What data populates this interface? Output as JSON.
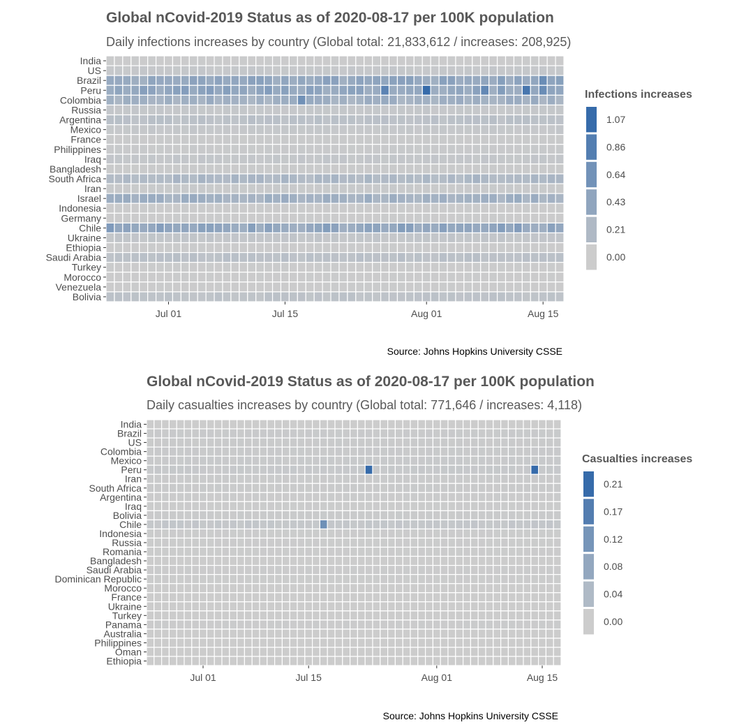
{
  "chart_data": [
    {
      "type": "heatmap",
      "title": "Global nCovid-2019 Status as of 2020-08-17 per 100K population",
      "subtitle": "Daily infections increases by country (Global total: 21,833,612 / increases: 208,925)",
      "caption": "Source: Johns Hopkins University CSSE",
      "legend_title": "Infections increases",
      "legend_values": [
        "1.07",
        "0.86",
        "0.64",
        "0.43",
        "0.21",
        "0.00"
      ],
      "x_ticks": [
        "Jul 01",
        "Jul 15",
        "Aug 01",
        "Aug 15"
      ],
      "x_tick_days": [
        7,
        21,
        38,
        52
      ],
      "date_range": [
        "2020-06-24",
        "2020-08-17"
      ],
      "countries": [
        "India",
        "US",
        "Brazil",
        "Peru",
        "Colombia",
        "Russia",
        "Argentina",
        "Mexico",
        "France",
        "Philippines",
        "Iraq",
        "Bangladesh",
        "South Africa",
        "Iran",
        "Israel",
        "Indonesia",
        "Germany",
        "Chile",
        "Ukraine",
        "Ethiopia",
        "Saudi Arabia",
        "Turkey",
        "Morocco",
        "Venezuela",
        "Bolivia"
      ],
      "country_levels": [
        0.01,
        0.05,
        0.4,
        0.42,
        0.3,
        0.05,
        0.12,
        0.05,
        0.02,
        0.03,
        0.06,
        0.02,
        0.22,
        0.03,
        0.3,
        0.01,
        0.01,
        0.42,
        0.07,
        0.01,
        0.12,
        0.01,
        0.01,
        0.01,
        0.1
      ],
      "highlights": [
        {
          "country": "Peru",
          "date": "2020-07-27",
          "value": 0.8
        },
        {
          "country": "Peru",
          "date": "2020-08-01",
          "value": 1.07
        },
        {
          "country": "Peru",
          "date": "2020-08-08",
          "value": 0.75
        },
        {
          "country": "Peru",
          "date": "2020-08-13",
          "value": 0.95
        },
        {
          "country": "Peru",
          "date": "2020-08-15",
          "value": 0.7
        },
        {
          "country": "Brazil",
          "date": "2020-08-15",
          "value": 0.7
        },
        {
          "country": "Colombia",
          "date": "2020-07-17",
          "value": 0.65
        },
        {
          "country": "Chile",
          "date": "2020-06-24",
          "value": 0.55
        }
      ]
    },
    {
      "type": "heatmap",
      "title": "Global nCovid-2019 Status as of 2020-08-17 per 100K population",
      "subtitle": "Daily casualties increases by country (Global total: 771,646 / increases: 4,118)",
      "caption": "Source: Johns Hopkins University CSSE",
      "legend_title": "Casualties increases",
      "legend_values": [
        "0.21",
        "0.17",
        "0.12",
        "0.08",
        "0.04",
        "0.00"
      ],
      "x_ticks": [
        "Jul 01",
        "Jul 15",
        "Aug 01",
        "Aug 15"
      ],
      "x_tick_days": [
        7,
        21,
        38,
        52
      ],
      "date_range": [
        "2020-06-24",
        "2020-08-17"
      ],
      "countries": [
        "India",
        "Brazil",
        "US",
        "Colombia",
        "Mexico",
        "Peru",
        "Iran",
        "South Africa",
        "Argentina",
        "Iraq",
        "Bolivia",
        "Chile",
        "Indonesia",
        "Russia",
        "Romania",
        "Bangladesh",
        "Saudi Arabia",
        "Dominican Republic",
        "Morocco",
        "France",
        "Ukraine",
        "Turkey",
        "Panama",
        "Australia",
        "Philippines",
        "Oman",
        "Ethiopia"
      ],
      "country_levels": [
        0.0,
        0.005,
        0.004,
        0.005,
        0.006,
        0.008,
        0.003,
        0.004,
        0.002,
        0.001,
        0.004,
        0.012,
        0.001,
        0.001,
        0.001,
        0.0,
        0.002,
        0.001,
        0.0,
        0.0,
        0.0,
        0.0,
        0.002,
        0.0,
        0.0,
        0.0,
        0.0
      ],
      "highlights": [
        {
          "country": "Peru",
          "date": "2020-07-23",
          "value": 0.21
        },
        {
          "country": "Peru",
          "date": "2020-08-14",
          "value": 0.21
        },
        {
          "country": "Chile",
          "date": "2020-07-17",
          "value": 0.13
        }
      ]
    }
  ]
}
